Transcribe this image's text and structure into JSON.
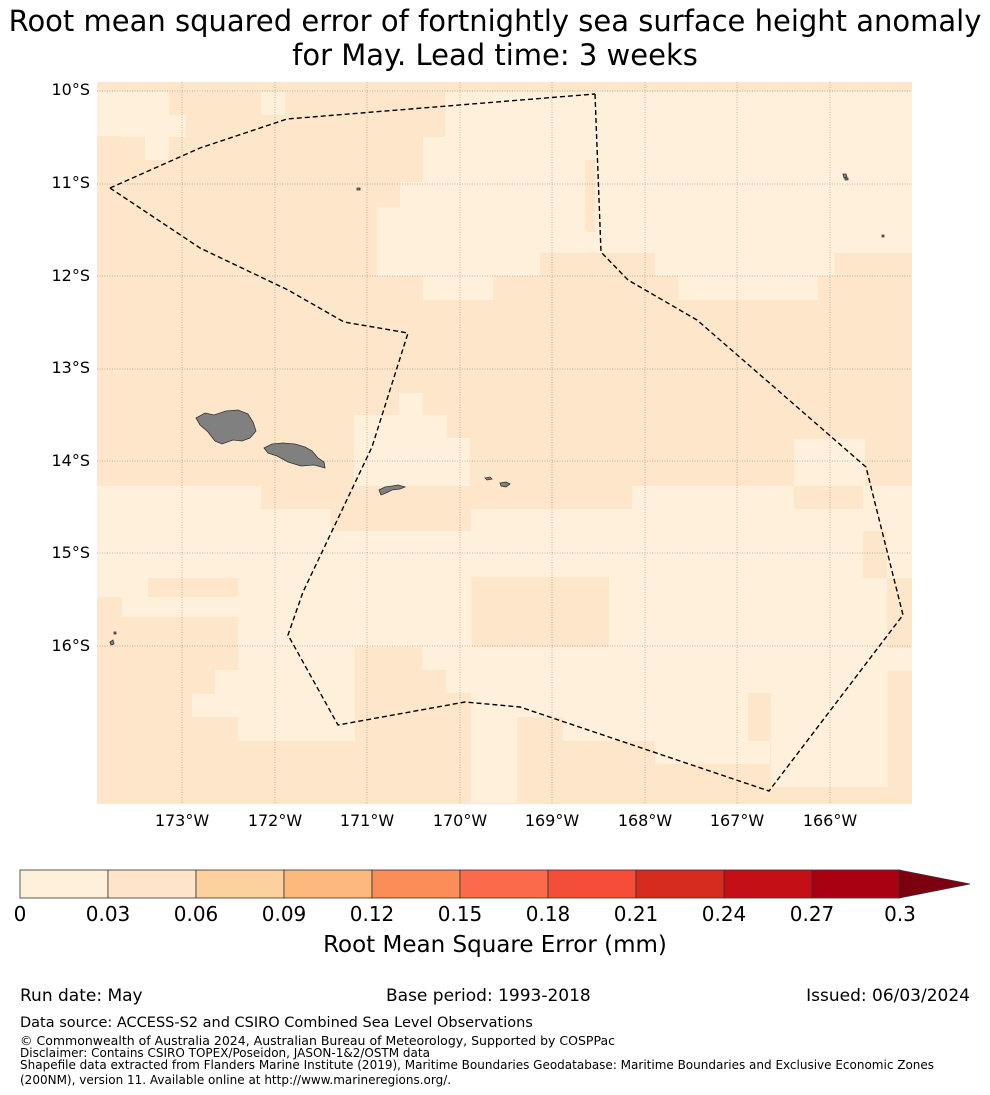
{
  "title": {
    "line1": "Root mean squared error of fortnightly sea surface height anomaly",
    "line2": "for May. Lead time: 3 weeks"
  },
  "map": {
    "lat_labels": [
      "10°S",
      "11°S",
      "12°S",
      "13°S",
      "14°S",
      "15°S",
      "16°S"
    ],
    "lon_labels": [
      "173°W",
      "172°W",
      "171°W",
      "170°W",
      "169°W",
      "168°W",
      "167°W",
      "166°W"
    ],
    "field_colors": {
      "low": "#fff0dc",
      "mid": "#fde6c9"
    },
    "land_color": "#808080",
    "eez_boundary_style": "black dashed"
  },
  "colorbar": {
    "ticks": [
      "0",
      "0.03",
      "0.06",
      "0.09",
      "0.12",
      "0.15",
      "0.18",
      "0.21",
      "0.24",
      "0.27",
      "0.3"
    ],
    "colors": [
      "#fff0dc",
      "#fee5c9",
      "#fdd19d",
      "#fdb97d",
      "#fb8d58",
      "#fb6b4b",
      "#f44d38",
      "#d52c1f",
      "#c40f16",
      "#a90012"
    ],
    "extend_color": "#7d0010",
    "label": "Root Mean Square Error (mm)"
  },
  "footer": {
    "run_date": "Run date: May",
    "base_period": "Base period: 1993-2018",
    "issued": "Issued: 06/03/2024",
    "data_source": "Data source: ACCESS-S2 and CSIRO Combined Sea Level Observations",
    "copyright": "© Commonwealth of Australia 2024, Australian Bureau of Meteorology, Supported by COSPPac",
    "disclaimer": "Disclaimer: Contains CSIRO TOPEX/Poseidon, JASON-1&2/OSTM data",
    "shapefile_line1": "Shapefile data extracted from Flanders Marine Institute (2019), Maritime Boundaries Geodatabase: Maritime Boundaries and Exclusive Economic Zones",
    "shapefile_line2": "(200NM), version 11. Available online at http://www.marineregions.org/."
  }
}
